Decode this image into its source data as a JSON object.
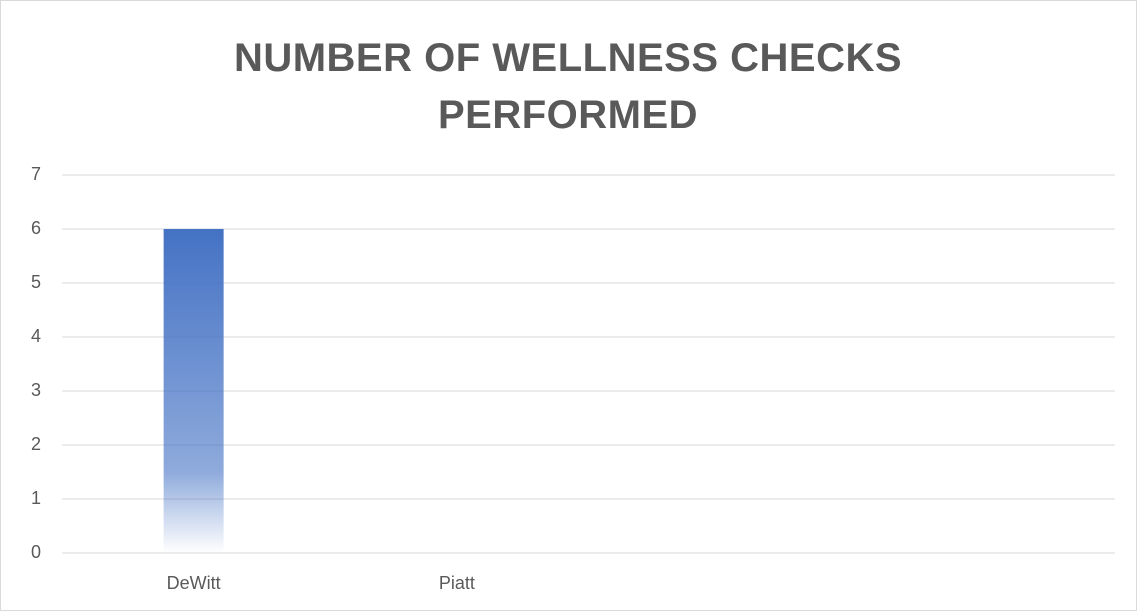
{
  "chart_data": {
    "type": "bar",
    "title": "NUMBER OF WELLNESS CHECKS PERFORMED",
    "categories": [
      "DeWitt",
      "Piatt",
      null,
      null
    ],
    "values": [
      6,
      0,
      null,
      null
    ],
    "color": "#4472c4",
    "ylim": [
      0,
      7
    ],
    "yticks": [
      0,
      1,
      2,
      3,
      4,
      5,
      6,
      7
    ],
    "grid": true
  }
}
